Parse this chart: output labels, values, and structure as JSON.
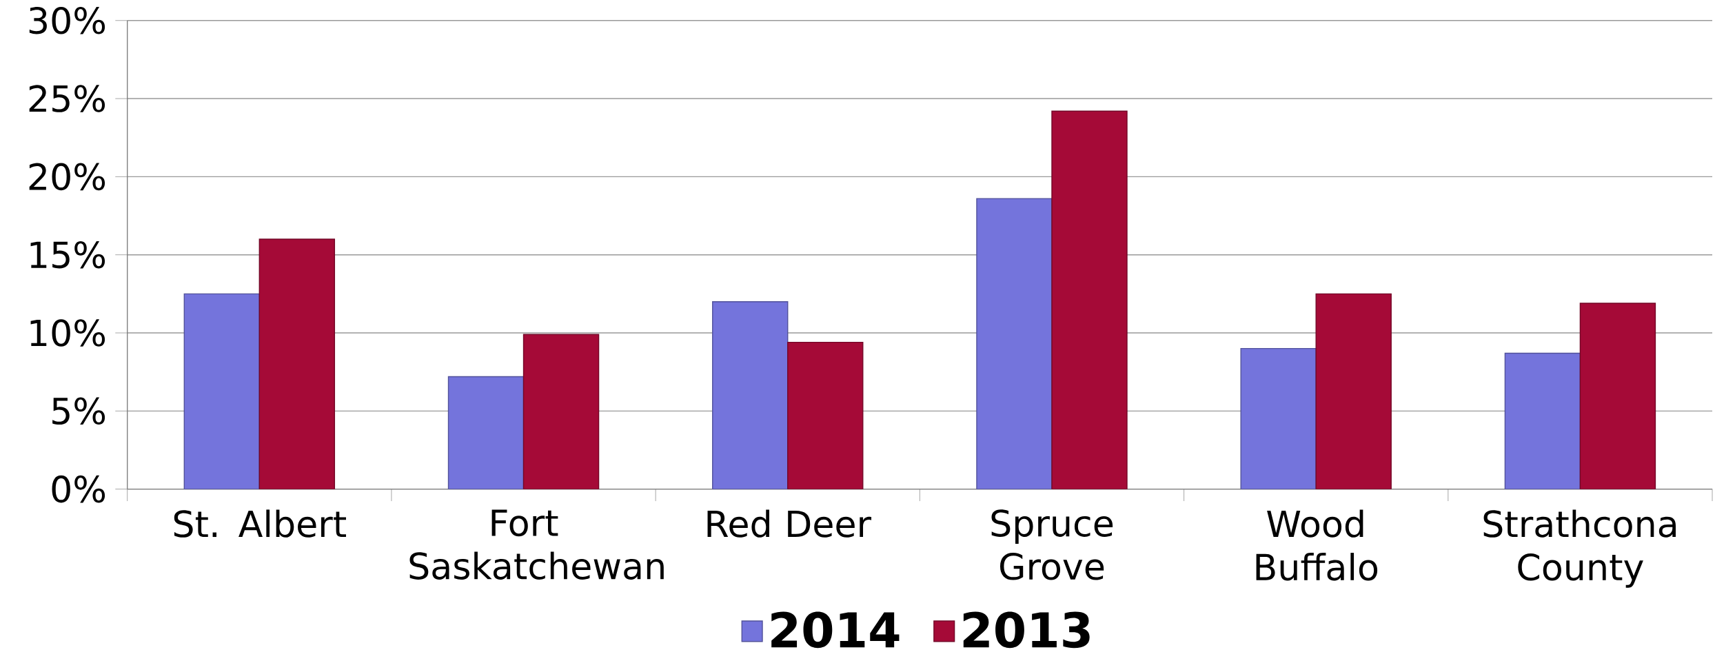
{
  "chart_data": {
    "type": "bar",
    "categories": [
      "St. Albert",
      "Fort Saskatchewan",
      "Red Deer",
      "Spruce Grove",
      "Wood Buffalo",
      "Strathcona County"
    ],
    "series": [
      {
        "name": "2014",
        "color": "#7474dc",
        "values": [
          12.5,
          7.2,
          12.0,
          18.6,
          9.0,
          8.7
        ]
      },
      {
        "name": "2013",
        "color": "#a50a37",
        "values": [
          16.0,
          9.9,
          9.4,
          24.2,
          12.5,
          11.9
        ]
      }
    ],
    "ylim": [
      0,
      30
    ],
    "yticks": [
      {
        "value": 0,
        "label": "0%"
      },
      {
        "value": 5,
        "label": "5%"
      },
      {
        "value": 10,
        "label": "10%"
      },
      {
        "value": 15,
        "label": "15%"
      },
      {
        "value": 20,
        "label": "20%"
      },
      {
        "value": 25,
        "label": "25%"
      },
      {
        "value": 30,
        "label": "30%"
      }
    ],
    "grid": "y",
    "legend": "bottom"
  }
}
